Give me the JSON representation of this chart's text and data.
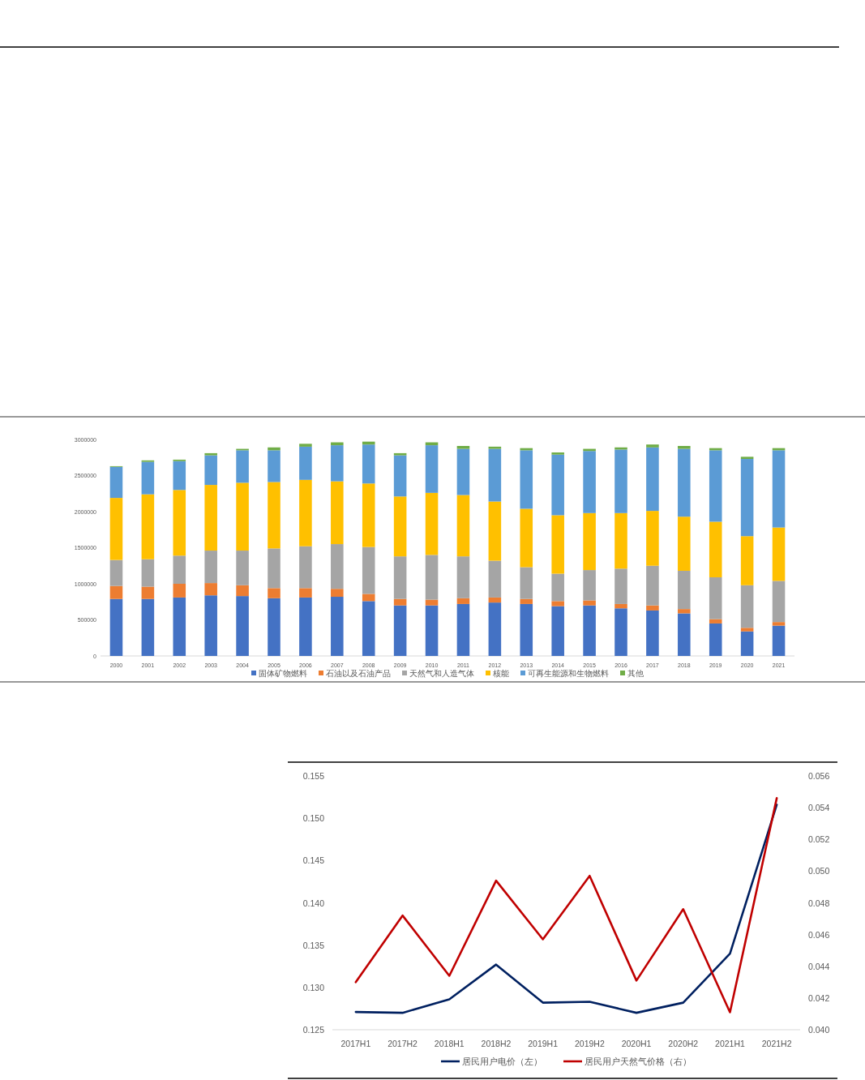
{
  "chart_data": [
    {
      "type": "bar",
      "stacked": true,
      "categories": [
        "2000",
        "2001",
        "2002",
        "2003",
        "2004",
        "2005",
        "2006",
        "2007",
        "2008",
        "2009",
        "2010",
        "2011",
        "2012",
        "2013",
        "2014",
        "2015",
        "2016",
        "2017",
        "2018",
        "2019",
        "2020",
        "2021"
      ],
      "series": [
        {
          "name": "固体矿物燃料",
          "color": "#4472c4",
          "values": [
            790000,
            790000,
            810000,
            840000,
            830000,
            800000,
            810000,
            820000,
            760000,
            700000,
            700000,
            720000,
            740000,
            720000,
            690000,
            700000,
            660000,
            630000,
            590000,
            450000,
            340000,
            420000
          ]
        },
        {
          "name": "石油以及石油产品",
          "color": "#ed7d31",
          "values": [
            180000,
            170000,
            190000,
            170000,
            150000,
            140000,
            130000,
            110000,
            100000,
            90000,
            80000,
            80000,
            70000,
            70000,
            70000,
            70000,
            60000,
            70000,
            60000,
            60000,
            50000,
            50000
          ]
        },
        {
          "name": "天然气和人造气体",
          "color": "#a5a5a5",
          "values": [
            360000,
            380000,
            390000,
            450000,
            480000,
            550000,
            580000,
            620000,
            650000,
            590000,
            620000,
            580000,
            510000,
            440000,
            380000,
            420000,
            490000,
            550000,
            530000,
            580000,
            590000,
            570000
          ]
        },
        {
          "name": "核能",
          "color": "#ffc000",
          "values": [
            860000,
            900000,
            910000,
            910000,
            940000,
            920000,
            920000,
            870000,
            880000,
            830000,
            860000,
            850000,
            820000,
            810000,
            810000,
            790000,
            770000,
            760000,
            750000,
            770000,
            680000,
            740000
          ]
        },
        {
          "name": "可再生能源和生物燃料",
          "color": "#5b9bd5",
          "values": [
            430000,
            450000,
            400000,
            410000,
            450000,
            440000,
            460000,
            500000,
            540000,
            570000,
            660000,
            640000,
            730000,
            810000,
            840000,
            860000,
            880000,
            880000,
            940000,
            990000,
            1070000,
            1070000
          ]
        },
        {
          "name": "其他",
          "color": "#70ad47",
          "values": [
            10000,
            20000,
            20000,
            30000,
            20000,
            40000,
            40000,
            40000,
            40000,
            30000,
            40000,
            40000,
            30000,
            30000,
            30000,
            30000,
            30000,
            40000,
            40000,
            30000,
            30000,
            30000
          ]
        }
      ],
      "ylim": [
        0,
        3000000
      ],
      "yticks": [
        0,
        500000,
        1000000,
        1500000,
        2000000,
        2500000,
        3000000
      ],
      "legend": "bottom"
    },
    {
      "type": "line",
      "categories": [
        "2017H1",
        "2017H2",
        "2018H1",
        "2018H2",
        "2019H1",
        "2019H2",
        "2020H1",
        "2020H2",
        "2021H1",
        "2021H2"
      ],
      "series": [
        {
          "name": "居民用户电价（左）",
          "color": "#002060",
          "values": [
            0.1271,
            0.127,
            0.1286,
            0.1327,
            0.1282,
            0.1283,
            0.127,
            0.1282,
            0.134,
            0.1516
          ]
        },
        {
          "name": "居民用户天然气价格（右）",
          "color": "#c00000",
          "axis": "y2",
          "values": [
            0.043,
            0.0472,
            0.0434,
            0.0494,
            0.0457,
            0.0497,
            0.0431,
            0.0476,
            0.0411,
            0.0546
          ]
        }
      ],
      "ylim": [
        0.125,
        0.155
      ],
      "yticks": [
        0.125,
        {
          "value": 0.13,
          "label": "0.130"
        },
        0.135,
        {
          "value": 0.14,
          "label": "0.140"
        },
        0.145,
        {
          "value": 0.15,
          "label": "0.150"
        },
        0.155
      ],
      "y2lim": [
        0.04,
        0.056
      ],
      "y2ticks": [
        {
          "value": 0.04,
          "label": "0.040"
        },
        {
          "value": 0.042,
          "label": "0.042"
        },
        {
          "value": 0.044,
          "label": "0.044"
        },
        {
          "value": 0.046,
          "label": "0.046"
        },
        {
          "value": 0.048,
          "label": "0.048"
        },
        {
          "value": 0.05,
          "label": "0.050"
        },
        {
          "value": 0.052,
          "label": "0.052"
        },
        {
          "value": 0.054,
          "label": "0.054"
        },
        {
          "value": 0.056,
          "label": "0.056"
        }
      ],
      "legend": "bottom"
    }
  ]
}
